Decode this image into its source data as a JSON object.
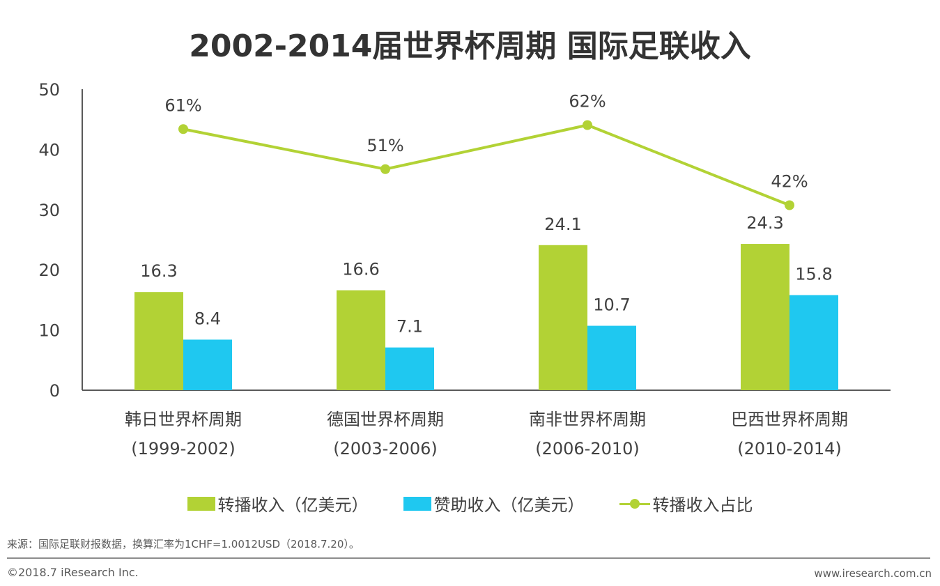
{
  "chart_data": {
    "type": "bar",
    "title": "2002-2014届世界杯周期 国际足联收入",
    "categories": [
      [
        "韩日世界杯周期",
        "(1999-2002)"
      ],
      [
        "德国世界杯周期",
        "(2003-2006)"
      ],
      [
        "南非世界杯周期",
        "(2006-2010)"
      ],
      [
        "巴西世界杯周期",
        "(2010-2014)"
      ]
    ],
    "ylim": [
      0,
      50
    ],
    "yticks": [
      0,
      10,
      20,
      30,
      40,
      50
    ],
    "grid": false,
    "legend_position": "bottom",
    "series": [
      {
        "name": "转播收入（亿美元）",
        "type": "bar",
        "color": "#b2d235",
        "values": [
          16.3,
          16.6,
          24.1,
          24.3
        ],
        "labels": [
          "16.3",
          "16.6",
          "24.1",
          "24.3"
        ]
      },
      {
        "name": "赞助收入（亿美元）",
        "type": "bar",
        "color": "#1fc8f0",
        "values": [
          8.4,
          7.1,
          10.7,
          15.8
        ],
        "labels": [
          "8.4",
          "7.1",
          "10.7",
          "15.8"
        ]
      },
      {
        "name": "转播收入占比",
        "type": "line",
        "axis": "secondary-hidden",
        "color": "#b2d235",
        "values": [
          61,
          51,
          62,
          42
        ],
        "labels": [
          "61%",
          "51%",
          "62%",
          "42%"
        ]
      }
    ]
  },
  "footer": {
    "source": "来源：国际足联财报数据，换算汇率为1CHF=1.0012USD（2018.7.20）。",
    "copyright": "©2018.7 iResearch Inc.",
    "website": "www.iresearch.com.cn"
  }
}
